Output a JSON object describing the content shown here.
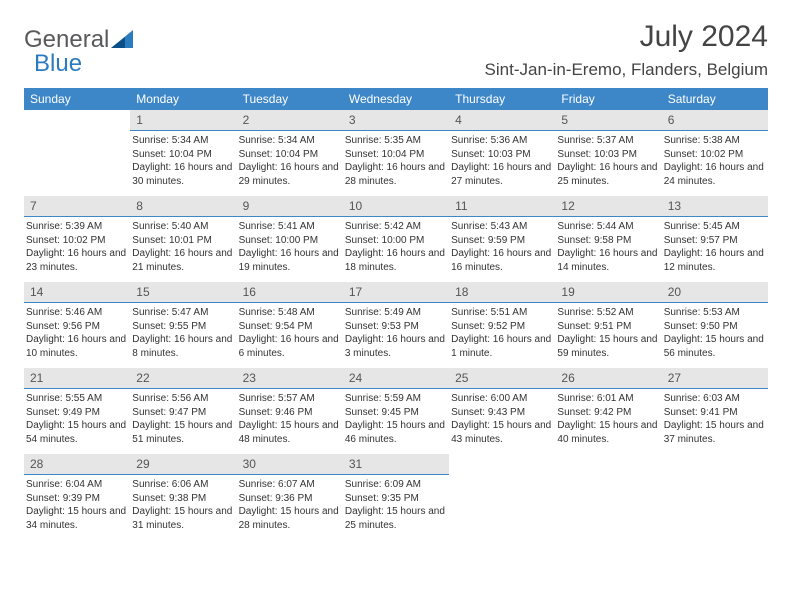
{
  "branding": {
    "general": "General",
    "blue": "Blue"
  },
  "header": {
    "month": "July 2024",
    "location": "Sint-Jan-in-Eremo, Flanders, Belgium"
  },
  "colors": {
    "header_bg": "#3d87c9",
    "header_text": "#ffffff",
    "daynum_bg": "#e6e6e6",
    "daynum_border": "#3d87c9",
    "body_text": "#333333",
    "logo_gray": "#58595b",
    "logo_blue": "#2b7bbf",
    "page_bg": "#ffffff"
  },
  "weekdays": [
    "Sunday",
    "Monday",
    "Tuesday",
    "Wednesday",
    "Thursday",
    "Friday",
    "Saturday"
  ],
  "weeks": [
    [
      null,
      {
        "n": "1",
        "sr": "5:34 AM",
        "ss": "10:04 PM",
        "dl": "16 hours and 30 minutes."
      },
      {
        "n": "2",
        "sr": "5:34 AM",
        "ss": "10:04 PM",
        "dl": "16 hours and 29 minutes."
      },
      {
        "n": "3",
        "sr": "5:35 AM",
        "ss": "10:04 PM",
        "dl": "16 hours and 28 minutes."
      },
      {
        "n": "4",
        "sr": "5:36 AM",
        "ss": "10:03 PM",
        "dl": "16 hours and 27 minutes."
      },
      {
        "n": "5",
        "sr": "5:37 AM",
        "ss": "10:03 PM",
        "dl": "16 hours and 25 minutes."
      },
      {
        "n": "6",
        "sr": "5:38 AM",
        "ss": "10:02 PM",
        "dl": "16 hours and 24 minutes."
      }
    ],
    [
      {
        "n": "7",
        "sr": "5:39 AM",
        "ss": "10:02 PM",
        "dl": "16 hours and 23 minutes."
      },
      {
        "n": "8",
        "sr": "5:40 AM",
        "ss": "10:01 PM",
        "dl": "16 hours and 21 minutes."
      },
      {
        "n": "9",
        "sr": "5:41 AM",
        "ss": "10:00 PM",
        "dl": "16 hours and 19 minutes."
      },
      {
        "n": "10",
        "sr": "5:42 AM",
        "ss": "10:00 PM",
        "dl": "16 hours and 18 minutes."
      },
      {
        "n": "11",
        "sr": "5:43 AM",
        "ss": "9:59 PM",
        "dl": "16 hours and 16 minutes."
      },
      {
        "n": "12",
        "sr": "5:44 AM",
        "ss": "9:58 PM",
        "dl": "16 hours and 14 minutes."
      },
      {
        "n": "13",
        "sr": "5:45 AM",
        "ss": "9:57 PM",
        "dl": "16 hours and 12 minutes."
      }
    ],
    [
      {
        "n": "14",
        "sr": "5:46 AM",
        "ss": "9:56 PM",
        "dl": "16 hours and 10 minutes."
      },
      {
        "n": "15",
        "sr": "5:47 AM",
        "ss": "9:55 PM",
        "dl": "16 hours and 8 minutes."
      },
      {
        "n": "16",
        "sr": "5:48 AM",
        "ss": "9:54 PM",
        "dl": "16 hours and 6 minutes."
      },
      {
        "n": "17",
        "sr": "5:49 AM",
        "ss": "9:53 PM",
        "dl": "16 hours and 3 minutes."
      },
      {
        "n": "18",
        "sr": "5:51 AM",
        "ss": "9:52 PM",
        "dl": "16 hours and 1 minute."
      },
      {
        "n": "19",
        "sr": "5:52 AM",
        "ss": "9:51 PM",
        "dl": "15 hours and 59 minutes."
      },
      {
        "n": "20",
        "sr": "5:53 AM",
        "ss": "9:50 PM",
        "dl": "15 hours and 56 minutes."
      }
    ],
    [
      {
        "n": "21",
        "sr": "5:55 AM",
        "ss": "9:49 PM",
        "dl": "15 hours and 54 minutes."
      },
      {
        "n": "22",
        "sr": "5:56 AM",
        "ss": "9:47 PM",
        "dl": "15 hours and 51 minutes."
      },
      {
        "n": "23",
        "sr": "5:57 AM",
        "ss": "9:46 PM",
        "dl": "15 hours and 48 minutes."
      },
      {
        "n": "24",
        "sr": "5:59 AM",
        "ss": "9:45 PM",
        "dl": "15 hours and 46 minutes."
      },
      {
        "n": "25",
        "sr": "6:00 AM",
        "ss": "9:43 PM",
        "dl": "15 hours and 43 minutes."
      },
      {
        "n": "26",
        "sr": "6:01 AM",
        "ss": "9:42 PM",
        "dl": "15 hours and 40 minutes."
      },
      {
        "n": "27",
        "sr": "6:03 AM",
        "ss": "9:41 PM",
        "dl": "15 hours and 37 minutes."
      }
    ],
    [
      {
        "n": "28",
        "sr": "6:04 AM",
        "ss": "9:39 PM",
        "dl": "15 hours and 34 minutes."
      },
      {
        "n": "29",
        "sr": "6:06 AM",
        "ss": "9:38 PM",
        "dl": "15 hours and 31 minutes."
      },
      {
        "n": "30",
        "sr": "6:07 AM",
        "ss": "9:36 PM",
        "dl": "15 hours and 28 minutes."
      },
      {
        "n": "31",
        "sr": "6:09 AM",
        "ss": "9:35 PM",
        "dl": "15 hours and 25 minutes."
      },
      null,
      null,
      null
    ]
  ],
  "labels": {
    "sunrise": "Sunrise:",
    "sunset": "Sunset:",
    "daylight": "Daylight:"
  }
}
